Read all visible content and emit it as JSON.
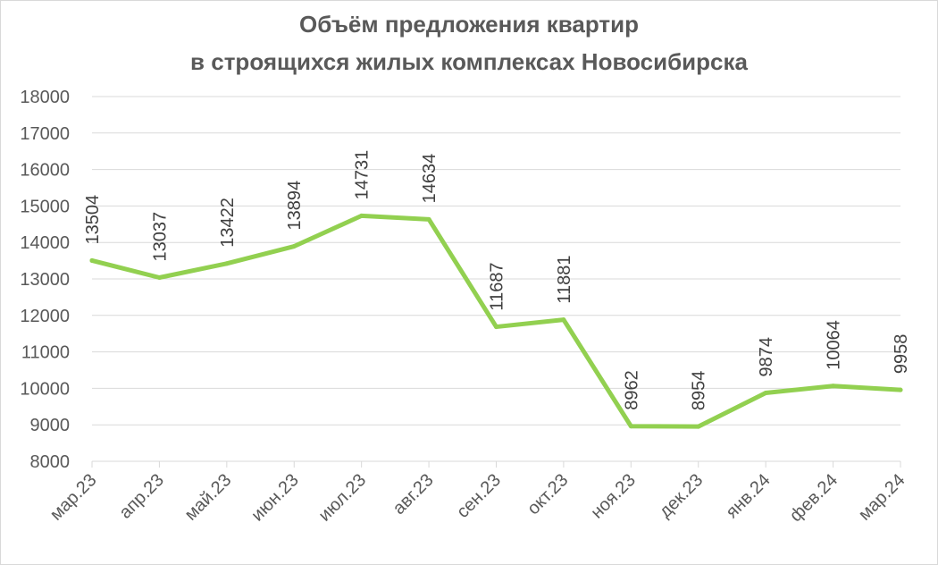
{
  "chart_data": {
    "type": "line",
    "title_lines": [
      "Объём предложения квартир",
      "в строящихся  жилых комплексах Новосибирска"
    ],
    "xlabel": "",
    "ylabel": "",
    "categories": [
      "мар.23",
      "апр.23",
      "май.23",
      "июн.23",
      "июл.23",
      "авг.23",
      "сен.23",
      "окт.23",
      "ноя.23",
      "дек.23",
      "янв.24",
      "фев.24",
      "мар.24"
    ],
    "series": [
      {
        "values": [
          13504,
          13037,
          13422,
          13894,
          14731,
          14634,
          11687,
          11881,
          8962,
          8954,
          9874,
          10064,
          9958
        ],
        "color": "#92d050"
      }
    ],
    "ylim": [
      8000,
      18000
    ],
    "yticks": [
      8000,
      9000,
      10000,
      11000,
      12000,
      13000,
      14000,
      15000,
      16000,
      17000,
      18000
    ],
    "grid": true,
    "legend": "none",
    "data_labels": true,
    "gridline_color": "#d9d9d9"
  }
}
